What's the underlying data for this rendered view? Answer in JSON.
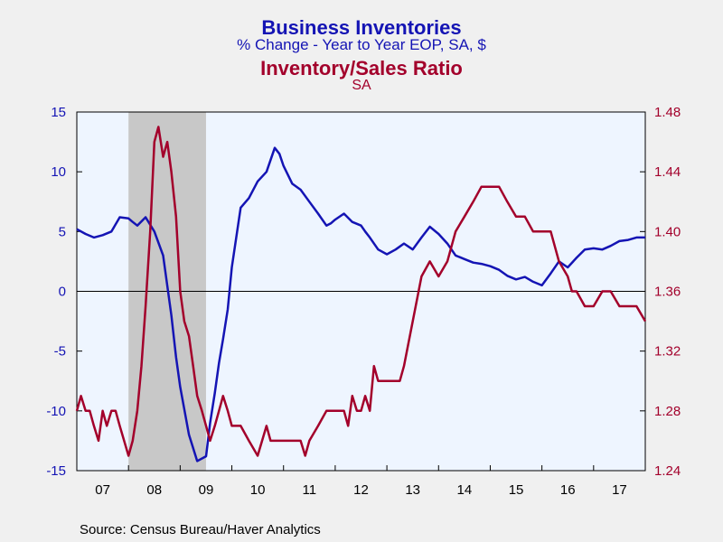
{
  "chart_data": {
    "type": "line",
    "title": "Business Inventories",
    "subtitle": "% Change - Year to Year    EOP, SA, $",
    "title2": "Inventory/Sales Ratio",
    "subtitle2": "SA",
    "source": "Source:  Census Bureau/Haver Analytics",
    "x_ticks": [
      "07",
      "08",
      "09",
      "10",
      "11",
      "12",
      "13",
      "14",
      "15",
      "16",
      "17"
    ],
    "y_left": {
      "min": -15,
      "max": 15,
      "ticks": [
        "15",
        "10",
        "5",
        "0",
        "-5",
        "-10",
        "-15"
      ],
      "color": "#1414b4"
    },
    "y_right": {
      "min": 1.24,
      "max": 1.48,
      "ticks": [
        "1.48",
        "1.44",
        "1.40",
        "1.36",
        "1.32",
        "1.28",
        "1.24"
      ],
      "color": "#a3002b"
    },
    "recession": {
      "start": 2008.0,
      "end": 2009.5
    },
    "x_range": [
      2007.0,
      2018.0
    ],
    "series": [
      {
        "name": "Business Inventories",
        "axis": "left",
        "color": "#1414b4",
        "x": [
          2007.0,
          2007.17,
          2007.33,
          2007.5,
          2007.67,
          2007.83,
          2008.0,
          2008.08,
          2008.17,
          2008.33,
          2008.5,
          2008.67,
          2008.83,
          2008.92,
          2009.0,
          2009.17,
          2009.33,
          2009.5,
          2009.58,
          2009.67,
          2009.75,
          2009.83,
          2009.92,
          2010.0,
          2010.17,
          2010.33,
          2010.5,
          2010.67,
          2010.83,
          2010.92,
          2011.0,
          2011.17,
          2011.33,
          2011.5,
          2011.67,
          2011.83,
          2011.92,
          2012.0,
          2012.17,
          2012.33,
          2012.5,
          2012.58,
          2012.67,
          2012.83,
          2013.0,
          2013.17,
          2013.33,
          2013.5,
          2013.67,
          2013.83,
          2014.0,
          2014.17,
          2014.33,
          2014.5,
          2014.67,
          2014.83,
          2015.0,
          2015.17,
          2015.33,
          2015.5,
          2015.67,
          2015.83,
          2016.0,
          2016.17,
          2016.33,
          2016.5,
          2016.67,
          2016.83,
          2017.0,
          2017.17,
          2017.33,
          2017.5,
          2017.67,
          2017.83,
          2018.0
        ],
        "y": [
          5.2,
          4.8,
          4.5,
          4.7,
          5.0,
          6.2,
          6.1,
          5.8,
          5.5,
          6.2,
          5.0,
          3.0,
          -2.0,
          -5.5,
          -8.0,
          -12.0,
          -14.2,
          -13.8,
          -11.0,
          -8.5,
          -6.0,
          -4.0,
          -1.5,
          2.0,
          7.0,
          7.8,
          9.2,
          10.0,
          12.0,
          11.5,
          10.5,
          9.0,
          8.5,
          7.5,
          6.5,
          5.5,
          5.7,
          6.0,
          6.5,
          5.8,
          5.5,
          5.0,
          4.5,
          3.5,
          3.1,
          3.5,
          4.0,
          3.5,
          4.5,
          5.4,
          4.8,
          4.0,
          3.0,
          2.7,
          2.4,
          2.3,
          2.1,
          1.8,
          1.3,
          1.0,
          1.2,
          0.8,
          0.5,
          1.5,
          2.5,
          2.0,
          2.8,
          3.5,
          3.6,
          3.5,
          3.8,
          4.2,
          4.3,
          4.5,
          4.5
        ]
      },
      {
        "name": "Inventory/Sales Ratio",
        "axis": "right",
        "color": "#a3002b",
        "x": [
          2007.0,
          2007.08,
          2007.17,
          2007.25,
          2007.33,
          2007.42,
          2007.5,
          2007.58,
          2007.67,
          2007.75,
          2007.83,
          2008.0,
          2008.08,
          2008.17,
          2008.25,
          2008.33,
          2008.42,
          2008.5,
          2008.58,
          2008.67,
          2008.75,
          2008.83,
          2008.92,
          2009.0,
          2009.08,
          2009.17,
          2009.25,
          2009.33,
          2009.42,
          2009.5,
          2009.58,
          2009.67,
          2009.75,
          2009.83,
          2009.92,
          2010.0,
          2010.17,
          2010.33,
          2010.5,
          2010.67,
          2010.75,
          2010.83,
          2010.92,
          2011.0,
          2011.17,
          2011.33,
          2011.42,
          2011.5,
          2011.67,
          2011.83,
          2012.0,
          2012.17,
          2012.25,
          2012.33,
          2012.42,
          2012.5,
          2012.58,
          2012.67,
          2012.75,
          2012.83,
          2013.0,
          2013.17,
          2013.25,
          2013.33,
          2013.5,
          2013.67,
          2013.83,
          2014.0,
          2014.17,
          2014.33,
          2014.5,
          2014.67,
          2014.83,
          2015.0,
          2015.08,
          2015.17,
          2015.33,
          2015.5,
          2015.67,
          2015.83,
          2016.0,
          2016.17,
          2016.33,
          2016.5,
          2016.58,
          2016.67,
          2016.83,
          2017.0,
          2017.17,
          2017.33,
          2017.5,
          2017.67,
          2017.83,
          2018.0
        ],
        "y": [
          1.28,
          1.29,
          1.28,
          1.28,
          1.27,
          1.26,
          1.28,
          1.27,
          1.28,
          1.28,
          1.27,
          1.25,
          1.26,
          1.28,
          1.31,
          1.35,
          1.4,
          1.46,
          1.47,
          1.45,
          1.46,
          1.44,
          1.41,
          1.36,
          1.34,
          1.33,
          1.31,
          1.29,
          1.28,
          1.27,
          1.26,
          1.27,
          1.28,
          1.29,
          1.28,
          1.27,
          1.27,
          1.26,
          1.25,
          1.27,
          1.26,
          1.26,
          1.26,
          1.26,
          1.26,
          1.26,
          1.25,
          1.26,
          1.27,
          1.28,
          1.28,
          1.28,
          1.27,
          1.29,
          1.28,
          1.28,
          1.29,
          1.28,
          1.31,
          1.3,
          1.3,
          1.3,
          1.3,
          1.31,
          1.34,
          1.37,
          1.38,
          1.37,
          1.38,
          1.4,
          1.41,
          1.42,
          1.43,
          1.43,
          1.43,
          1.43,
          1.42,
          1.41,
          1.41,
          1.4,
          1.4,
          1.4,
          1.38,
          1.37,
          1.36,
          1.36,
          1.35,
          1.35,
          1.36,
          1.36,
          1.35,
          1.35,
          1.35,
          1.34
        ]
      }
    ]
  }
}
